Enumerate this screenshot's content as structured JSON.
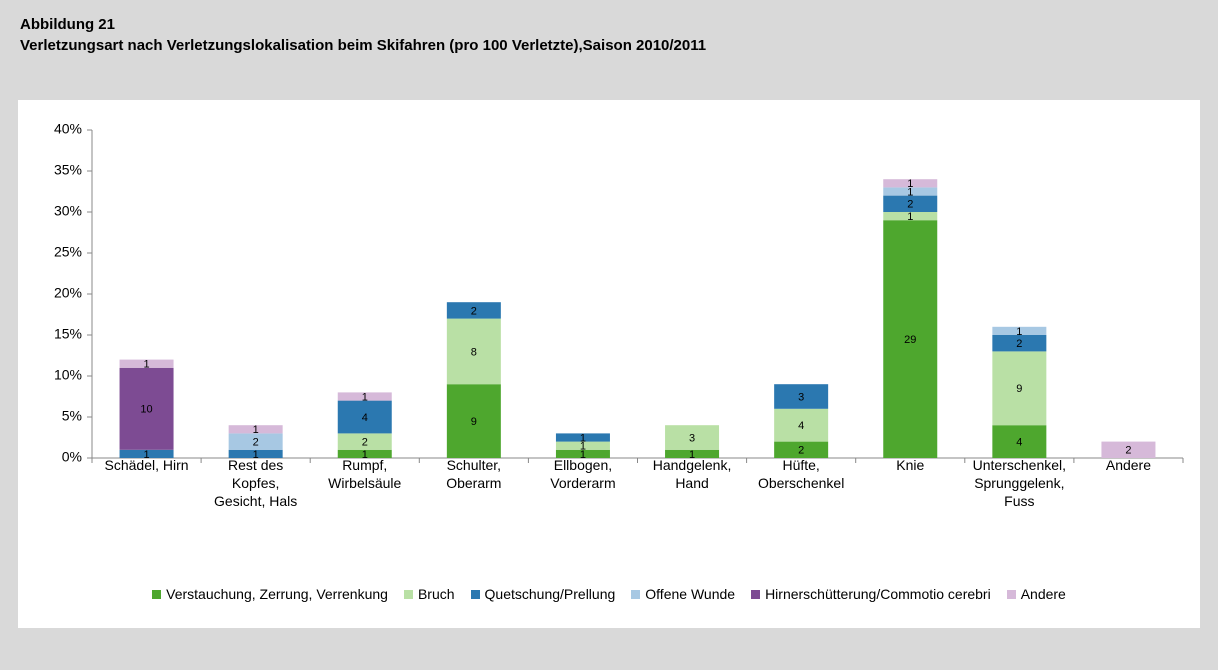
{
  "header": {
    "figure": "Abbildung 21",
    "title": "Verletzungsart nach Verletzungslokalisation beim Skifahren (pro 100 Verletzte),Saison 2010/2011"
  },
  "chart_data": {
    "type": "stacked_bar",
    "categories": [
      "Schädel, Hirn",
      "Rest des Kopfes, Gesicht, Hals",
      "Rumpf, Wirbelsäule",
      "Schulter, Oberarm",
      "Ellbogen, Vorderarm",
      "Handgelenk, Hand",
      "Hüfte, Oberschenkel",
      "Knie",
      "Unterschenkel, Sprunggelenk, Fuss",
      "Andere"
    ],
    "series": [
      {
        "name": "Verstauchung, Zerrung, Verrenkung",
        "color": "#4ea72e",
        "values": [
          null,
          null,
          1,
          9,
          1,
          1,
          2,
          29,
          4,
          null
        ]
      },
      {
        "name": "Bruch",
        "color": "#b9e0a5",
        "values": [
          null,
          null,
          2,
          8,
          1,
          3,
          4,
          1,
          9,
          null
        ]
      },
      {
        "name": "Quetschung/Prellung",
        "color": "#2b78b0",
        "values": [
          1,
          1,
          4,
          2,
          1,
          null,
          3,
          2,
          2,
          null
        ]
      },
      {
        "name": "Offene Wunde",
        "color": "#a7c8e3",
        "values": [
          null,
          2,
          null,
          null,
          null,
          null,
          null,
          1,
          1,
          null
        ]
      },
      {
        "name": "Hirnerschütterung/Commotio cerebri",
        "color": "#7d4b93",
        "values": [
          10,
          null,
          null,
          null,
          null,
          null,
          null,
          null,
          null,
          null
        ]
      },
      {
        "name": "Andere",
        "color": "#d6b9d9",
        "values": [
          1,
          1,
          1,
          null,
          null,
          null,
          null,
          1,
          null,
          2
        ]
      }
    ],
    "ylim": [
      0,
      40
    ],
    "yticks": [
      {
        "value": 0,
        "label": "0%"
      },
      {
        "value": 5,
        "label": "5%"
      },
      {
        "value": 10,
        "label": "10%"
      },
      {
        "value": 15,
        "label": "15%"
      },
      {
        "value": 20,
        "label": "20%"
      },
      {
        "value": 25,
        "label": "25%"
      },
      {
        "value": 30,
        "label": "30%"
      },
      {
        "value": 35,
        "label": "35%"
      },
      {
        "value": 40,
        "label": "40%"
      }
    ],
    "grid": false,
    "legend": "bottom"
  }
}
